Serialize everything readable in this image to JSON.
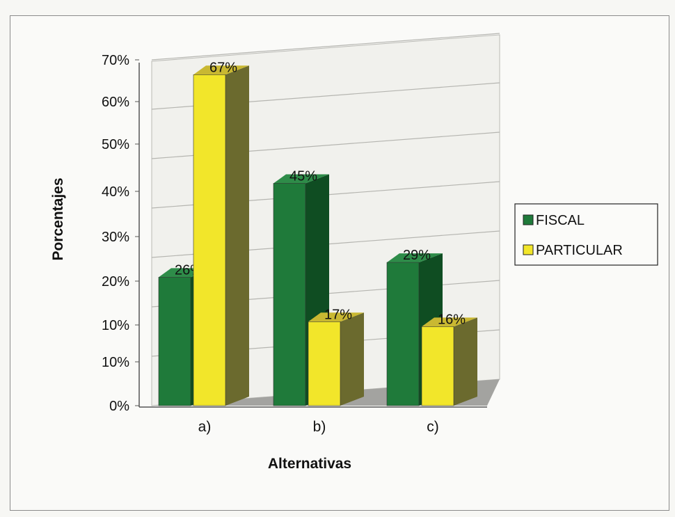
{
  "chart_data": {
    "type": "bar",
    "categories": [
      "a)",
      "b)",
      "c)"
    ],
    "series": [
      {
        "name": "FISCAL",
        "values": [
          26,
          45,
          29
        ],
        "labels": [
          "26%",
          "45%",
          "29%"
        ]
      },
      {
        "name": "PARTICULAR",
        "values": [
          67,
          17,
          16
        ],
        "labels": [
          "67%",
          "17%",
          "16%"
        ]
      }
    ],
    "xlabel": "Alternativas",
    "ylabel": "Porcentajes",
    "ylim": [
      0,
      70
    ],
    "yticks": [
      "0%",
      "10%",
      "10%",
      "20%",
      "30%",
      "40%",
      "50%",
      "60%",
      "70%"
    ],
    "grid": true,
    "legend_position": "right",
    "colors": {
      "FISCAL": "#1f7a3a",
      "PARTICULAR": "#f2e62a",
      "side_fiscal": "#0f4d22",
      "side_particular": "#6b6a2e",
      "wall": "#f2f2ee",
      "floor": "#9c9c9c"
    }
  }
}
